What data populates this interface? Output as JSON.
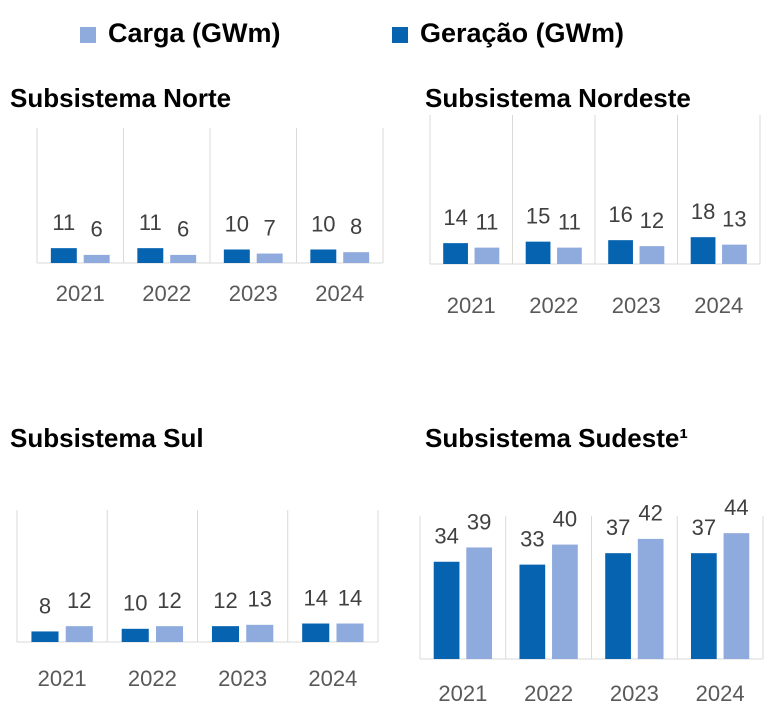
{
  "chart_data": [
    {
      "type": "bar",
      "title": "Subsistema Norte",
      "categories": [
        "2021",
        "2022",
        "2023",
        "2024"
      ],
      "series": [
        {
          "name": "Geração (GWm)",
          "color": "#0563b0",
          "values": [
            11,
            11,
            10,
            10
          ]
        },
        {
          "name": "Carga (GWm)",
          "color": "#8faadc",
          "values": [
            6,
            6,
            7,
            8
          ]
        }
      ],
      "ylim": [
        0,
        100
      ]
    },
    {
      "type": "bar",
      "title": "Subsistema Nordeste",
      "categories": [
        "2021",
        "2022",
        "2023",
        "2024"
      ],
      "series": [
        {
          "name": "Geração (GWm)",
          "color": "#0563b0",
          "values": [
            14,
            15,
            16,
            18
          ]
        },
        {
          "name": "Carga (GWm)",
          "color": "#8faadc",
          "values": [
            11,
            11,
            12,
            13
          ]
        }
      ],
      "ylim": [
        0,
        100
      ]
    },
    {
      "type": "bar",
      "title": "Subsistema Sul",
      "categories": [
        "2021",
        "2022",
        "2023",
        "2024"
      ],
      "series": [
        {
          "name": "Geração (GWm)",
          "color": "#0563b0",
          "values": [
            8,
            10,
            12,
            14
          ]
        },
        {
          "name": "Carga (GWm)",
          "color": "#8faadc",
          "values": [
            12,
            12,
            13,
            14
          ]
        }
      ],
      "ylim": [
        0,
        100
      ]
    },
    {
      "type": "bar",
      "title": "Subsistema Sudeste¹",
      "categories": [
        "2021",
        "2022",
        "2023",
        "2024"
      ],
      "series": [
        {
          "name": "Geração (GWm)",
          "color": "#0563b0",
          "values": [
            34,
            33,
            37,
            37
          ]
        },
        {
          "name": "Carga (GWm)",
          "color": "#8faadc",
          "values": [
            39,
            40,
            42,
            44
          ]
        }
      ],
      "ylim": [
        0,
        50
      ]
    }
  ]
}
